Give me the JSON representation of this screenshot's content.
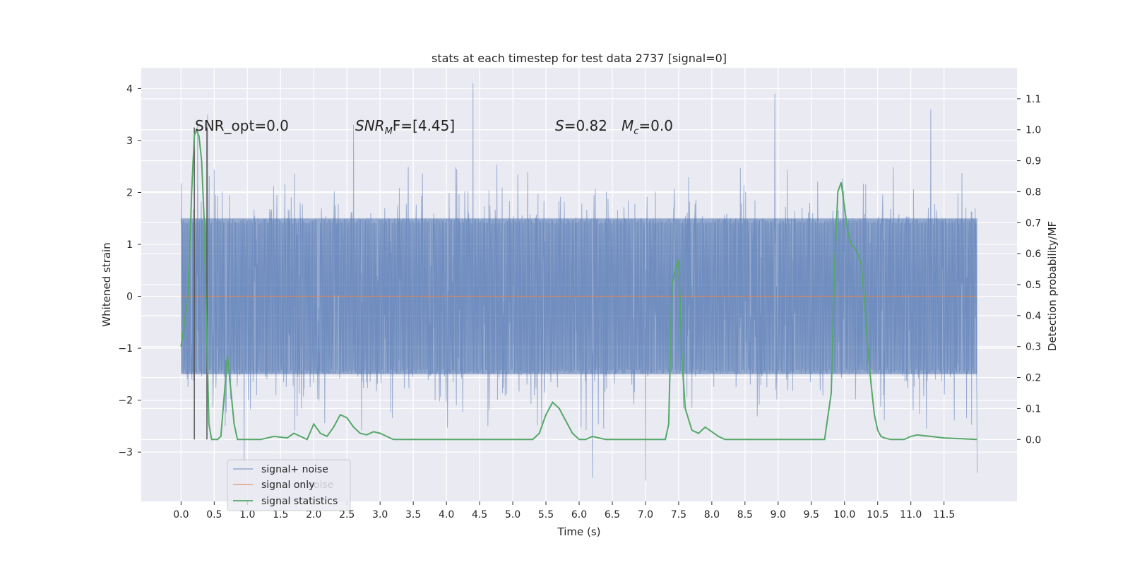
{
  "chart_data": {
    "type": "line",
    "title": "stats at each timestep for test data 2737 [signal=0]",
    "xlabel": "Time (s)",
    "ylabel_left": "Whitened strain",
    "ylabel_right": "Detection probability/MF",
    "xlim": [
      -0.6,
      12.6
    ],
    "ylim_left": [
      -3.95,
      4.4
    ],
    "ylim_right": [
      -0.2,
      1.2
    ],
    "x_ticks": [
      "0.0",
      "0.5",
      "1.0",
      "1.5",
      "2.0",
      "2.5",
      "3.0",
      "3.5",
      "4.0",
      "4.5",
      "5.0",
      "5.5",
      "6.0",
      "6.5",
      "7.0",
      "7.5",
      "8.0",
      "8.5",
      "9.0",
      "9.5",
      "10.0",
      "10.5",
      "11.0",
      "11.5"
    ],
    "y_ticks_left": [
      "4",
      "3",
      "2",
      "1",
      "0",
      "−1",
      "−2",
      "−3"
    ],
    "y_ticks_right": [
      "1.1",
      "1.0",
      "0.9",
      "0.8",
      "0.7",
      "0.6",
      "0.5",
      "0.4",
      "0.3",
      "0.2",
      "0.1",
      "0.0"
    ],
    "grid": true,
    "legend_position": "lower-left",
    "annotations": {
      "snr_opt": "SNR_opt=0.0",
      "snr_mf_main": "SNR",
      "snr_mf_sub": "M",
      "snr_mf_rest": "F=[4.45]",
      "s_main": "S",
      "s_rest": "=0.82",
      "mc_main": "M",
      "mc_sub": "c",
      "mc_rest": "=0.0"
    },
    "legend_hidden_text": "noise",
    "series": [
      {
        "name": "signal+ noise",
        "axis": "left",
        "color": "#4c72b0",
        "x_range": [
          0,
          12
        ],
        "envelope": {
          "core_low": -1.5,
          "core_high": 1.5,
          "typical_peak": 2.6,
          "max": 4.1,
          "min": -3.6
        },
        "notable_spikes": [
          {
            "x": 0.25,
            "y": 3.35
          },
          {
            "x": 0.4,
            "y": 3.5
          },
          {
            "x": 2.6,
            "y": 3.3
          },
          {
            "x": 4.4,
            "y": 4.1
          },
          {
            "x": 7.0,
            "y": -3.55
          },
          {
            "x": 8.95,
            "y": 3.9
          },
          {
            "x": 11.3,
            "y": 3.6
          },
          {
            "x": 0.95,
            "y": -3.2
          },
          {
            "x": 6.2,
            "y": -3.5
          },
          {
            "x": 12.0,
            "y": -3.4
          }
        ]
      },
      {
        "name": "signal only",
        "axis": "left",
        "color": "#dd8452",
        "x": [
          0,
          12
        ],
        "y": [
          0,
          0
        ]
      },
      {
        "name": "signal statistics",
        "axis": "right",
        "color": "#55a868",
        "x": [
          0,
          0.1,
          0.13,
          0.16,
          0.2,
          0.23,
          0.27,
          0.31,
          0.35,
          0.38,
          0.42,
          0.46,
          0.5,
          0.55,
          0.6,
          0.7,
          0.8,
          0.85,
          0.9,
          0.95,
          1.0,
          1.05,
          1.1,
          1.2,
          1.4,
          1.6,
          1.7,
          1.8,
          1.9,
          2.0,
          2.1,
          2.2,
          2.3,
          2.4,
          2.5,
          2.6,
          2.7,
          2.8,
          2.9,
          3.0,
          3.1,
          3.2,
          3.3,
          3.5,
          4.0,
          4.5,
          5.0,
          5.3,
          5.4,
          5.5,
          5.6,
          5.7,
          5.8,
          5.9,
          6.0,
          6.1,
          6.2,
          6.3,
          6.4,
          6.5,
          7.0,
          7.3,
          7.35,
          7.4,
          7.45,
          7.5,
          7.55,
          7.6,
          7.7,
          7.8,
          7.9,
          8.0,
          8.1,
          8.2,
          8.3,
          8.5,
          9.0,
          9.5,
          9.7,
          9.8,
          9.85,
          9.9,
          9.95,
          10.0,
          10.05,
          10.1,
          10.15,
          10.2,
          10.25,
          10.3,
          10.35,
          10.4,
          10.45,
          10.5,
          10.55,
          10.6,
          10.7,
          10.9,
          11.0,
          11.1,
          11.2,
          11.3,
          11.5,
          12.0
        ],
        "y": [
          0.3,
          0.45,
          0.6,
          0.8,
          0.98,
          1.0,
          0.98,
          0.9,
          0.7,
          0.4,
          0.05,
          0.0,
          0.0,
          0.0,
          0.01,
          0.27,
          0.05,
          0.0,
          0.0,
          0.0,
          0.0,
          0.0,
          0.0,
          0.0,
          0.01,
          0.005,
          0.02,
          0.01,
          0.0,
          0.05,
          0.02,
          0.01,
          0.04,
          0.08,
          0.07,
          0.04,
          0.02,
          0.015,
          0.025,
          0.02,
          0.01,
          0.0,
          0.0,
          0.0,
          0.0,
          0.0,
          0.0,
          0.0,
          0.02,
          0.08,
          0.12,
          0.1,
          0.06,
          0.02,
          0.0,
          0.0,
          0.01,
          0.005,
          0.0,
          0.0,
          0.0,
          0.0,
          0.05,
          0.5,
          0.55,
          0.58,
          0.26,
          0.1,
          0.03,
          0.02,
          0.04,
          0.025,
          0.01,
          0.0,
          0.0,
          0.0,
          0.0,
          0.0,
          0.0,
          0.15,
          0.55,
          0.8,
          0.83,
          0.75,
          0.67,
          0.63,
          0.62,
          0.6,
          0.57,
          0.45,
          0.3,
          0.18,
          0.08,
          0.03,
          0.01,
          0.005,
          0.0,
          0.0,
          0.01,
          0.015,
          0.012,
          0.01,
          0.005,
          0.0
        ]
      }
    ],
    "vertical_lines": [
      {
        "x": 0.2
      },
      {
        "x": 0.39
      }
    ]
  }
}
